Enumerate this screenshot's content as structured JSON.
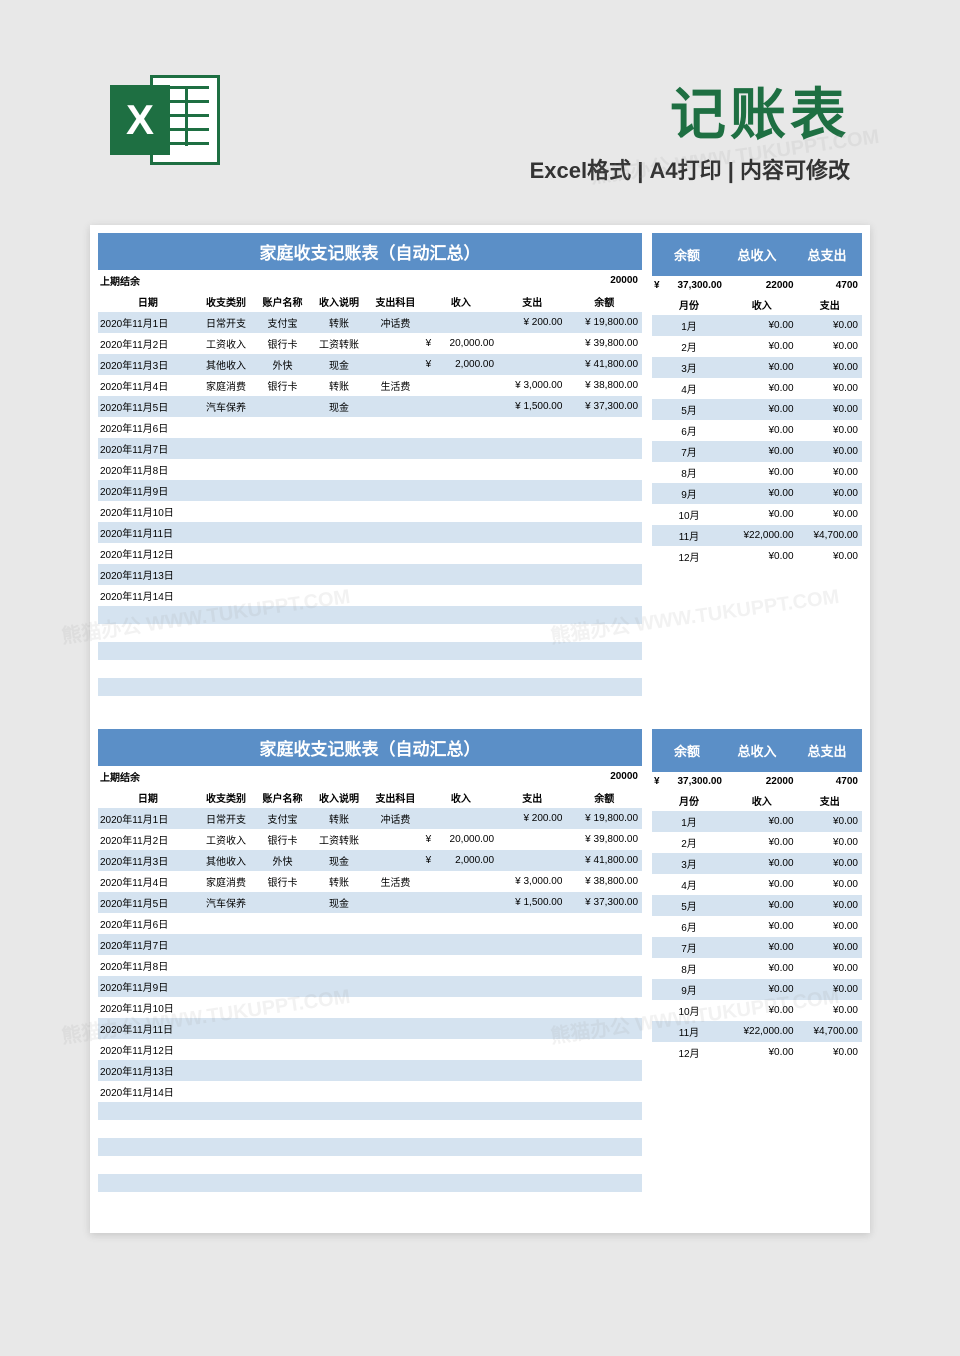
{
  "header": {
    "title": "记账表",
    "subtitle": "Excel格式 | A4打印 | 内容可修改",
    "icon_letter": "X"
  },
  "colors": {
    "header_bg": "#5b8fc7",
    "stripe": "#d5e3f0",
    "excel_green": "#1e6f42"
  },
  "main": {
    "title": "家庭收支记账表（自动汇总）",
    "prev_balance_label": "上期结余",
    "prev_balance": "20000",
    "columns": [
      "日期",
      "收支类别",
      "账户名称",
      "收入说明",
      "支出科目",
      "收入",
      "支出",
      "余额"
    ],
    "rows": [
      {
        "date": "2020年11月1日",
        "cat": "日常开支",
        "acct": "支付宝",
        "in_desc": "转账",
        "out_desc": "冲话费",
        "income": "",
        "expense_sym": "¥",
        "expense": "200.00",
        "bal_sym": "¥",
        "balance": "19,800.00"
      },
      {
        "date": "2020年11月2日",
        "cat": "工资收入",
        "acct": "银行卡",
        "in_desc": "工资转账",
        "out_desc": "",
        "income_sym": "¥",
        "income": "20,000.00",
        "expense": "",
        "bal_sym": "¥",
        "balance": "39,800.00"
      },
      {
        "date": "2020年11月3日",
        "cat": "其他收入",
        "acct": "外快",
        "in_desc": "现金",
        "out_desc": "",
        "income_sym": "¥",
        "income": "2,000.00",
        "expense": "",
        "bal_sym": "¥",
        "balance": "41,800.00"
      },
      {
        "date": "2020年11月4日",
        "cat": "家庭消费",
        "acct": "银行卡",
        "in_desc": "转账",
        "out_desc": "生活费",
        "income": "",
        "expense_sym": "¥",
        "expense": "3,000.00",
        "bal_sym": "¥",
        "balance": "38,800.00"
      },
      {
        "date": "2020年11月5日",
        "cat": "汽车保养",
        "acct": "",
        "in_desc": "现金",
        "out_desc": "",
        "income": "",
        "expense_sym": "¥",
        "expense": "1,500.00",
        "bal_sym": "¥",
        "balance": "37,300.00"
      },
      {
        "date": "2020年11月6日"
      },
      {
        "date": "2020年11月7日"
      },
      {
        "date": "2020年11月8日"
      },
      {
        "date": "2020年11月9日"
      },
      {
        "date": "2020年11月10日"
      },
      {
        "date": "2020年11月11日"
      },
      {
        "date": "2020年11月12日"
      },
      {
        "date": "2020年11月13日"
      },
      {
        "date": "2020年11月14日"
      },
      {},
      {},
      {},
      {},
      {},
      {}
    ]
  },
  "summary": {
    "headers": [
      "余额",
      "总收入",
      "总支出"
    ],
    "totals": {
      "bal_sym": "¥",
      "balance": "37,300.00",
      "income": "22000",
      "expense": "4700"
    },
    "sub_headers": [
      "月份",
      "收入",
      "支出"
    ],
    "months": [
      {
        "m": "1月",
        "in": "¥0.00",
        "out": "¥0.00"
      },
      {
        "m": "2月",
        "in": "¥0.00",
        "out": "¥0.00"
      },
      {
        "m": "3月",
        "in": "¥0.00",
        "out": "¥0.00"
      },
      {
        "m": "4月",
        "in": "¥0.00",
        "out": "¥0.00"
      },
      {
        "m": "5月",
        "in": "¥0.00",
        "out": "¥0.00"
      },
      {
        "m": "6月",
        "in": "¥0.00",
        "out": "¥0.00"
      },
      {
        "m": "7月",
        "in": "¥0.00",
        "out": "¥0.00"
      },
      {
        "m": "8月",
        "in": "¥0.00",
        "out": "¥0.00"
      },
      {
        "m": "9月",
        "in": "¥0.00",
        "out": "¥0.00"
      },
      {
        "m": "10月",
        "in": "¥0.00",
        "out": "¥0.00"
      },
      {
        "m": "11月",
        "in": "¥22,000.00",
        "out": "¥4,700.00"
      },
      {
        "m": "12月",
        "in": "¥0.00",
        "out": "¥0.00"
      }
    ]
  },
  "watermark": "熊猫办公 WWW.TUKUPPT.COM"
}
